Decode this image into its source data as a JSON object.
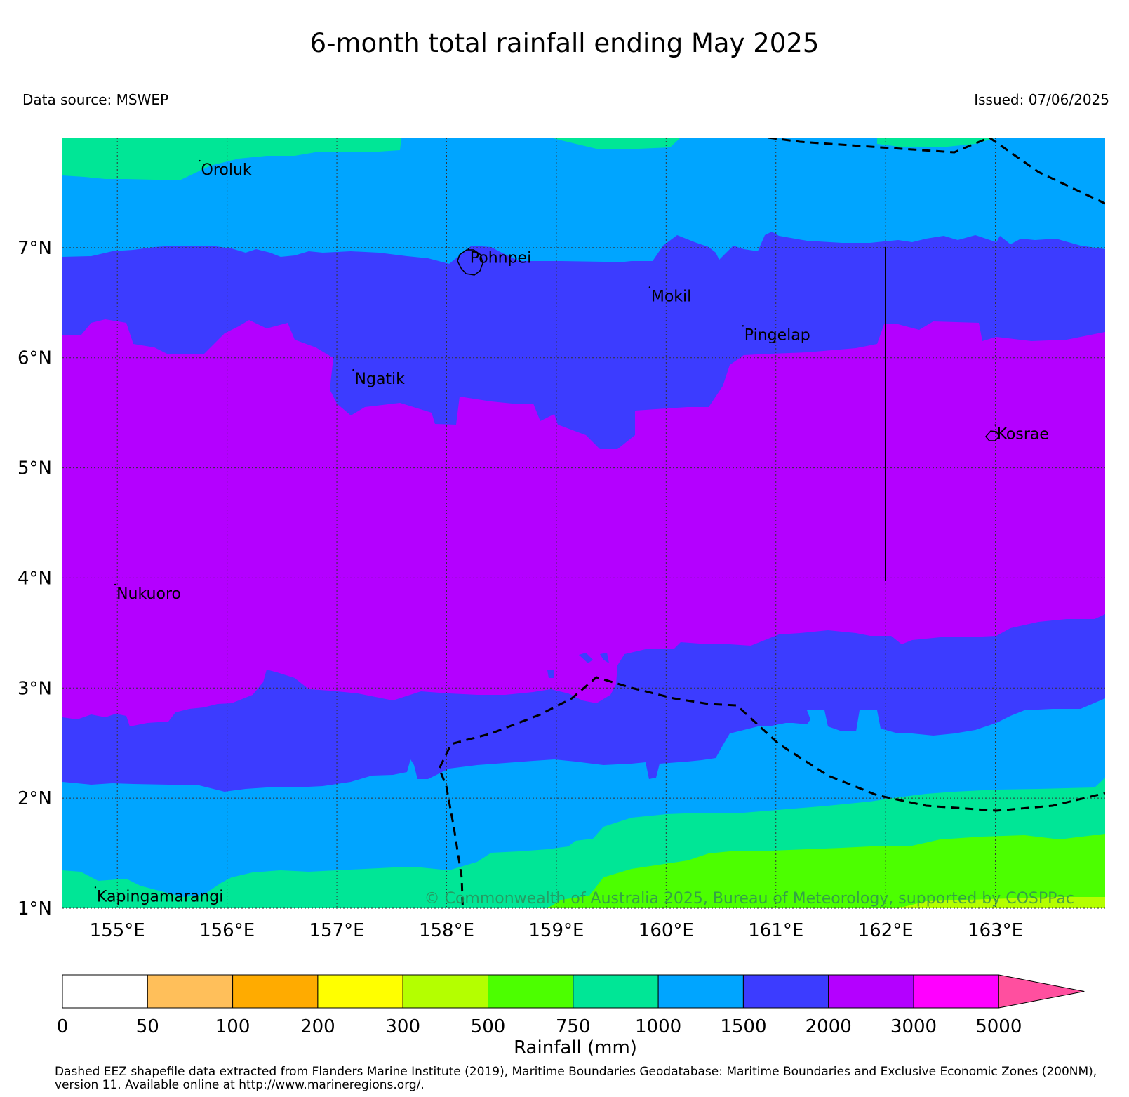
{
  "title": "6-month total rainfall ending May 2025",
  "data_source": "Data source: MSWEP",
  "issued": "Issued: 07/06/2025",
  "copyright": "© Commonwealth of Australia 2025, Bureau of Meteorology, supported by COSPPac",
  "map": {
    "lon_range": [
      154.5,
      164.0
    ],
    "lat_range": [
      1.0,
      8.0
    ],
    "grid": true,
    "lon_ticks": [
      155,
      156,
      157,
      158,
      159,
      160,
      161,
      162,
      163
    ],
    "lon_labels": [
      "155°E",
      "156°E",
      "157°E",
      "158°E",
      "159°E",
      "160°E",
      "161°E",
      "162°E",
      "163°E"
    ],
    "lat_ticks": [
      1,
      2,
      3,
      4,
      5,
      6,
      7
    ],
    "lat_labels": [
      "1°N",
      "2°N",
      "3°N",
      "4°N",
      "5°N",
      "6°N",
      "7°N"
    ],
    "places": [
      {
        "name": "Oroluk",
        "lon": 155.75,
        "lat": 7.7
      },
      {
        "name": "Pohnpei",
        "lon": 158.2,
        "lat": 6.9
      },
      {
        "name": "Mokil",
        "lon": 159.85,
        "lat": 6.55
      },
      {
        "name": "Pingelap",
        "lon": 160.7,
        "lat": 6.2
      },
      {
        "name": "Ngatik",
        "lon": 157.15,
        "lat": 5.8
      },
      {
        "name": "Kosrae",
        "lon": 163.0,
        "lat": 5.3
      },
      {
        "name": "Nukuoro",
        "lon": 154.98,
        "lat": 3.85
      },
      {
        "name": "Kapingamarangi",
        "lon": 154.8,
        "lat": 1.1
      }
    ]
  },
  "colorbar": {
    "title": "Rainfall (mm)",
    "labels": [
      "0",
      "50",
      "100",
      "200",
      "300",
      "500",
      "750",
      "1000",
      "1500",
      "2000",
      "3000",
      "5000"
    ],
    "colors": [
      "#ffffff",
      "#ffbf5a",
      "#ffab00",
      "#ffff00",
      "#b4ff00",
      "#4cff00",
      "#00e696",
      "#00a5ff",
      "#3c3cff",
      "#b400ff",
      "#ff00ff"
    ],
    "extend_color": "#ff4f9f"
  },
  "footnote": "Dashed EEZ shapefile data extracted from Flanders Marine Institute (2019), Maritime Boundaries Geodatabase: Maritime Boundaries and Exclusive Economic Zones (200NM), version 11. Available online at http://www.marineregions.org/."
}
